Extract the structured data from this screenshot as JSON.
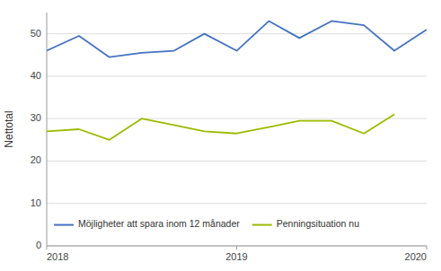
{
  "chart_data": {
    "type": "line",
    "ylabel": "Nettotal",
    "x": [
      2018.0,
      2018.17,
      2018.33,
      2018.5,
      2018.67,
      2018.83,
      2019.0,
      2019.17,
      2019.33,
      2019.5,
      2019.67,
      2019.83,
      2020.0
    ],
    "series": [
      {
        "name": "Möjligheter att spara inom 12 månader",
        "color": "#4472c4",
        "values": [
          46,
          49.5,
          44.5,
          45.5,
          46,
          50,
          46,
          53,
          49,
          53,
          52,
          46,
          51
        ]
      },
      {
        "name": "Penningsituation nu",
        "color": "#9BBB00",
        "values": [
          27,
          27.5,
          25,
          30,
          28.5,
          27,
          26.5,
          28,
          29.5,
          29.5,
          26.5,
          31,
          null
        ]
      }
    ],
    "xlim": [
      2018.0,
      2020.0
    ],
    "xticks": [
      2018,
      2019,
      2020
    ],
    "ylim": [
      0,
      55
    ],
    "yticks": [
      0,
      10,
      20,
      30,
      40,
      50
    ],
    "grid": true,
    "legend": "lower left"
  }
}
